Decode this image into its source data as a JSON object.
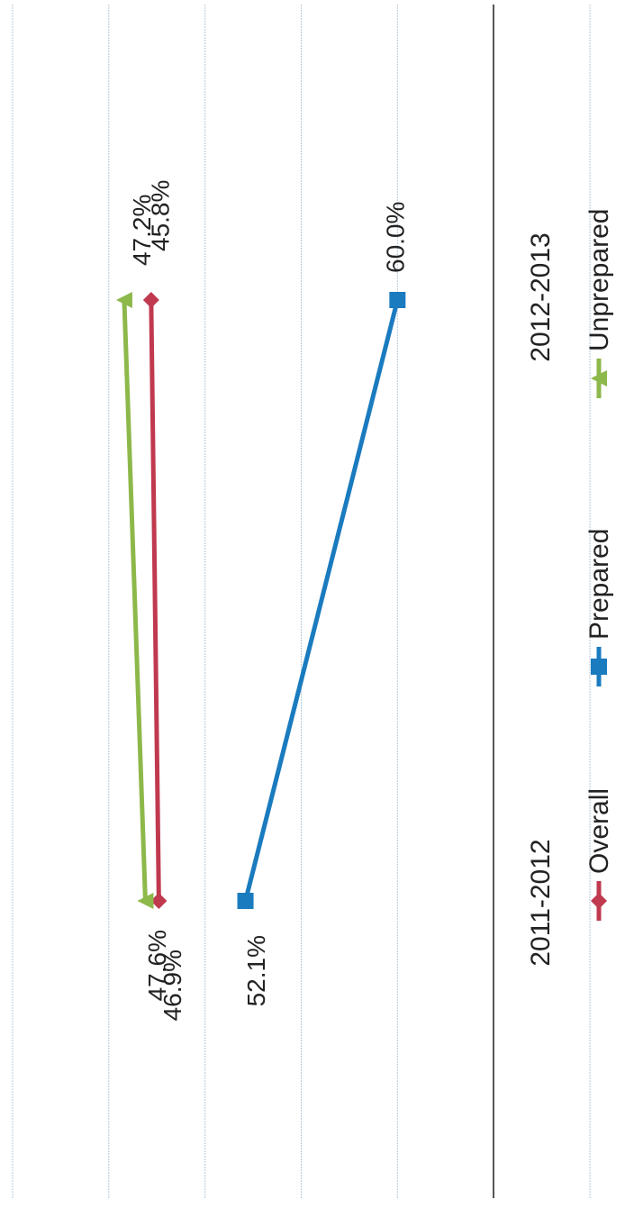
{
  "chart_data": {
    "type": "line",
    "orientation": "rotated-90-clockwise",
    "categories": [
      "2011-2012",
      "2012-2013"
    ],
    "series": [
      {
        "name": "Overall",
        "values": [
          47.6,
          47.2
        ],
        "labels": [
          "47.6%",
          "47.2%"
        ],
        "color": "#c0394f",
        "marker": "diamond"
      },
      {
        "name": "Prepared",
        "values": [
          52.1,
          60.0
        ],
        "labels": [
          "52.1%",
          "60.0%"
        ],
        "color": "#1a7bbf",
        "marker": "square"
      },
      {
        "name": "Unprepared",
        "values": [
          46.9,
          45.8
        ],
        "labels": [
          "46.9%",
          "45.8%"
        ],
        "color": "#8db84a",
        "marker": "triangle"
      }
    ],
    "ylim": [
      40,
      70
    ],
    "gridlines": [
      40,
      45,
      50,
      55,
      60,
      65,
      70
    ],
    "grid": true,
    "legend": {
      "position": "bottom",
      "entries": [
        "Overall",
        "Prepared",
        "Unprepared"
      ]
    },
    "title": "",
    "xlabel": "",
    "ylabel": "",
    "colors": {
      "grid": "#a8c0d6",
      "axis": "#555555"
    }
  }
}
